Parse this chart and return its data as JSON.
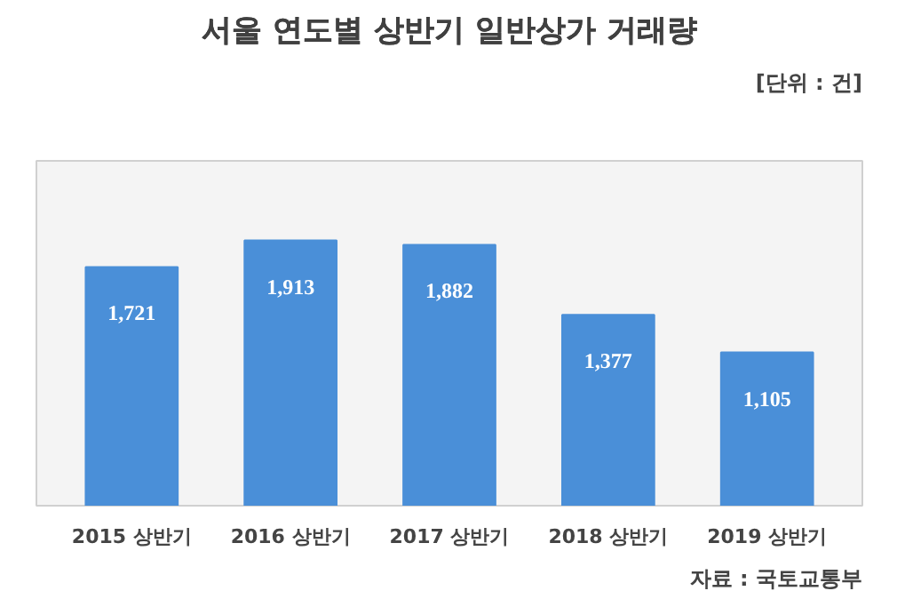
{
  "chart_data": {
    "type": "bar",
    "title": "서울 연도별 상반기 일반상가 거래량",
    "categories": [
      "2015 상반기",
      "2016 상반기",
      "2017 상반기",
      "2018 상반기",
      "2019 상반기"
    ],
    "values": [
      1721,
      1913,
      1882,
      1377,
      1105
    ],
    "value_labels": [
      "1,721",
      "1,913",
      "1,882",
      "1,377",
      "1,105"
    ],
    "color": "#4a8fd8",
    "grid": false,
    "annotations": [
      "[단위 : 건]",
      "자료 : 국토교통부"
    ]
  }
}
